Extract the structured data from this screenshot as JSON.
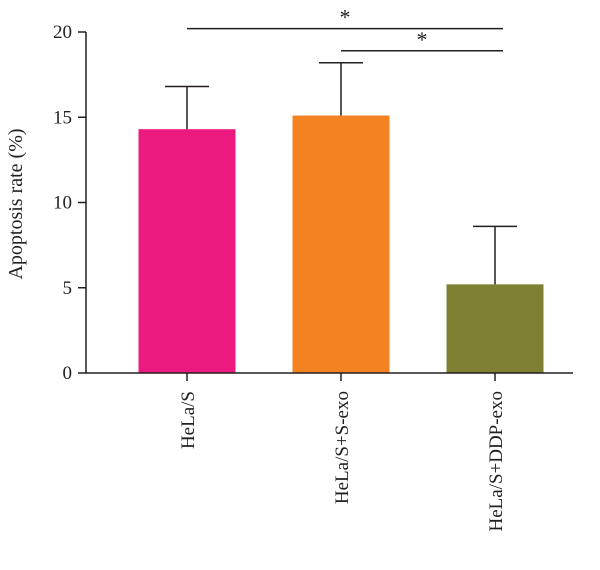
{
  "chart_data": {
    "type": "bar",
    "title": "",
    "xlabel": "",
    "ylabel": "Apoptosis rate (%)",
    "ylim": [
      0,
      20
    ],
    "yticks": [
      0,
      5,
      10,
      15,
      20
    ],
    "grid": false,
    "categories": [
      "HeLa/S",
      "HeLa/S+S-exo",
      "HeLa/S+DDP-exo"
    ],
    "values": [
      14.3,
      15.1,
      5.2
    ],
    "error_upper": [
      2.5,
      3.1,
      3.4
    ],
    "colors": [
      "#ec1a7f",
      "#f58220",
      "#7f8132"
    ],
    "significance": [
      {
        "from": 0,
        "to": 2,
        "label": "*",
        "y": 20.2
      },
      {
        "from": 1,
        "to": 2,
        "label": "*",
        "y": 18.9
      }
    ]
  }
}
